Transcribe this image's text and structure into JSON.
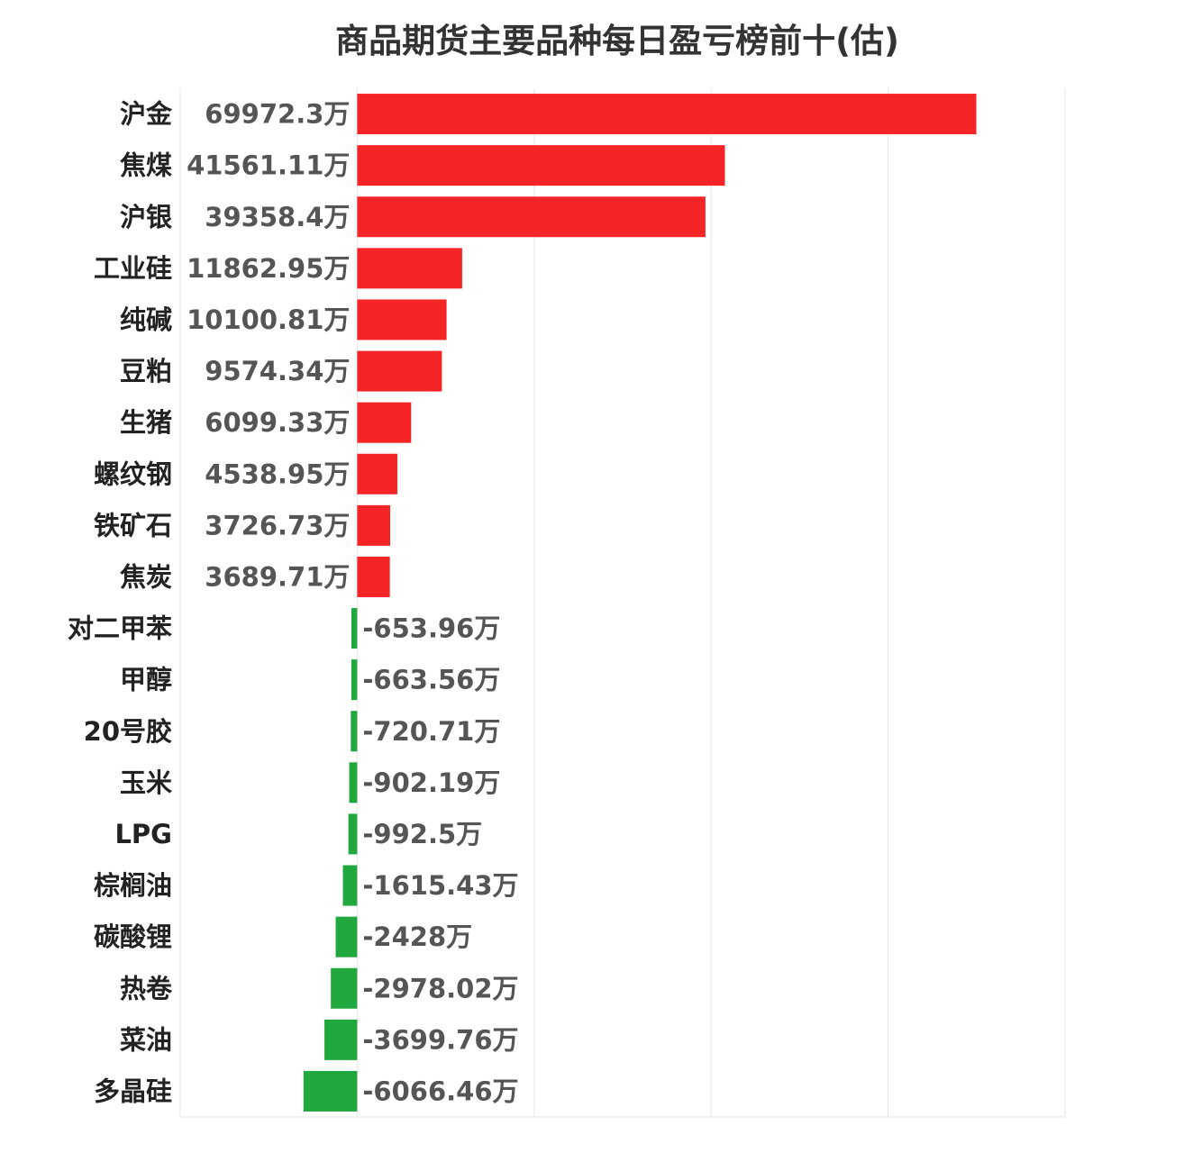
{
  "chart_data": {
    "type": "bar",
    "orientation": "horizontal",
    "title": "商品期货主要品种每日盈亏榜前十(估)",
    "unit": "万",
    "categories": [
      "沪金",
      "焦煤",
      "沪银",
      "工业硅",
      "纯碱",
      "豆粕",
      "生猪",
      "螺纹钢",
      "铁矿石",
      "焦炭",
      "对二甲苯",
      "甲醇",
      "20号胶",
      "玉米",
      "LPG",
      "棕榈油",
      "碳酸锂",
      "热卷",
      "菜油",
      "多晶硅"
    ],
    "values": [
      69972.3,
      41561.11,
      39358.4,
      11862.95,
      10100.81,
      9574.34,
      6099.33,
      4538.95,
      3726.73,
      3689.71,
      -653.96,
      -663.56,
      -720.71,
      -902.19,
      -992.5,
      -1615.43,
      -2428,
      -2978.02,
      -3699.76,
      -6066.46
    ],
    "labels": [
      "69972.3万",
      "41561.11万",
      "39358.4万",
      "11862.95万",
      "10100.81万",
      "9574.34万",
      "6099.33万",
      "4538.95万",
      "3726.73万",
      "3689.71万",
      "-653.96万",
      "-663.56万",
      "-720.71万",
      "-902.19万",
      "-992.5万",
      "-1615.43万",
      "-2428万",
      "-2978.02万",
      "-3699.76万",
      "-6066.46万"
    ],
    "xlim": [
      -20000,
      80000
    ],
    "grid": true,
    "colors": {
      "positive": "#f52527",
      "negative": "#20a73d"
    }
  }
}
